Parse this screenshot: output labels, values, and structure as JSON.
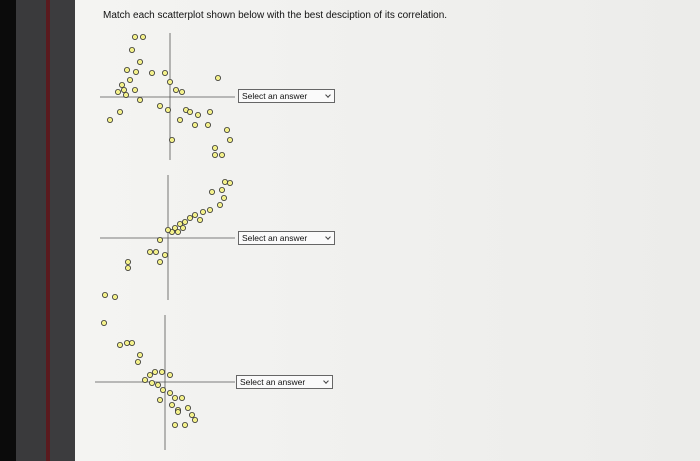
{
  "question": {
    "prompt": "Match each scatterplot shown below with the best desciption of its correlation.",
    "items": [
      {
        "select": "Select an answer"
      },
      {
        "select": "Select an answer"
      },
      {
        "select": "Select an answer"
      }
    ]
  }
}
